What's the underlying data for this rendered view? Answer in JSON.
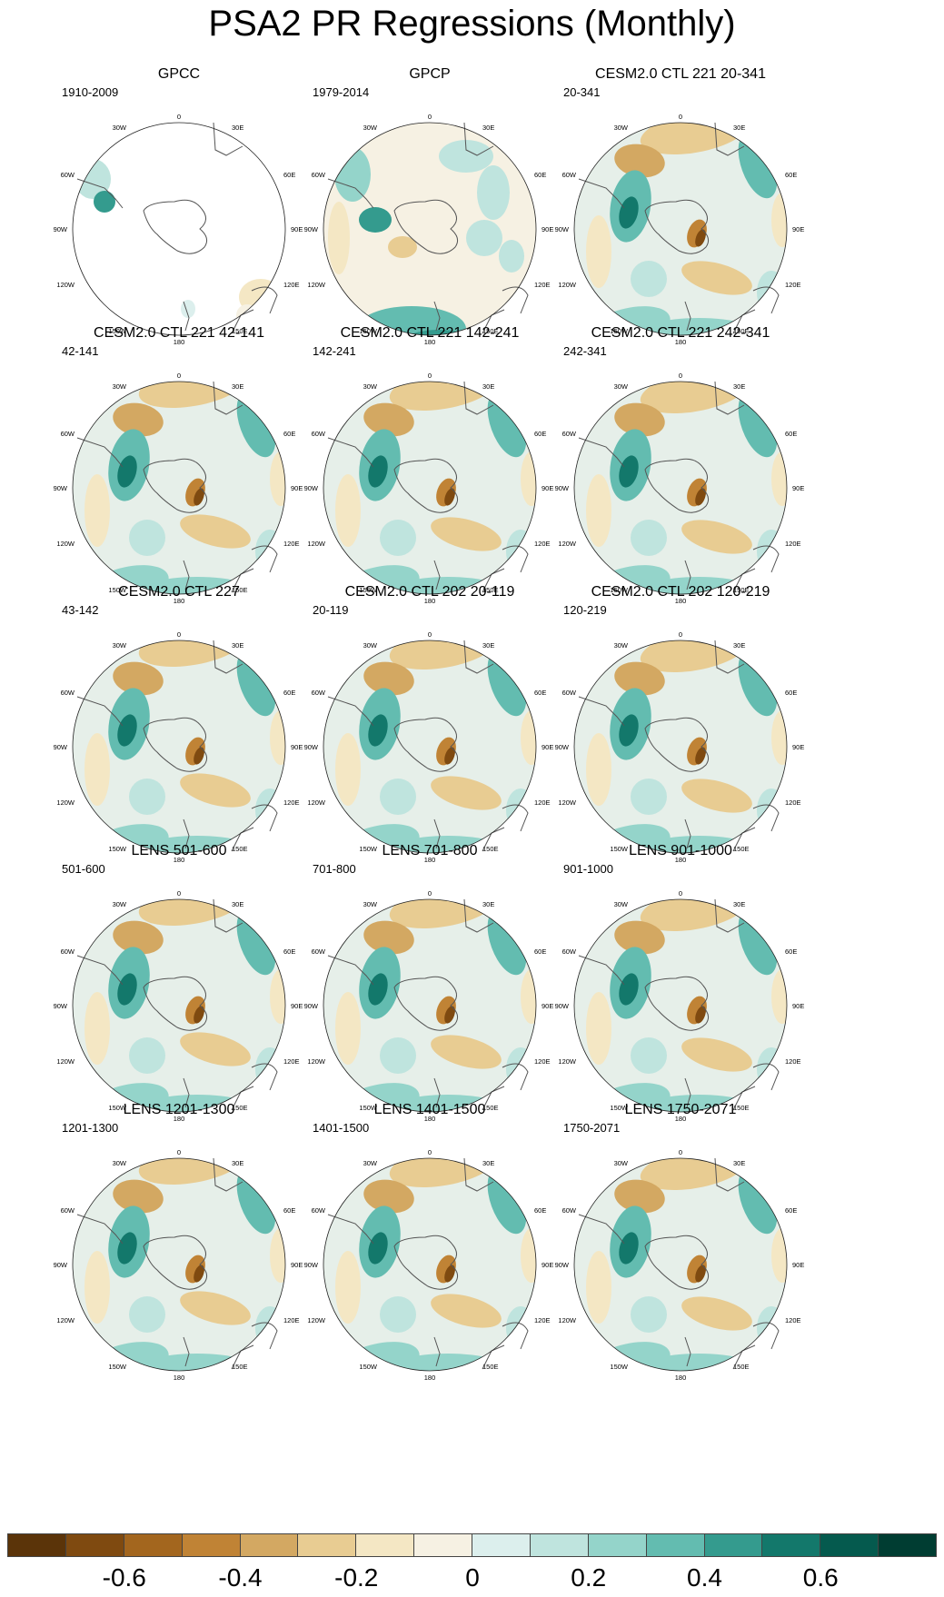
{
  "title": "PSA2 PR Regressions (Monthly)",
  "colors": {
    "levels": [
      "#5b3409",
      "#7f4a10",
      "#a3661e",
      "#c08335",
      "#d3a862",
      "#e8cc92",
      "#f4e7c4",
      "#f6f1e3",
      "#dcefed",
      "#bfe4de",
      "#94d4ca",
      "#63bcb0",
      "#349b8e",
      "#13786b",
      "#055a4e",
      "#003d32"
    ],
    "coast": "#555555"
  },
  "map_labels": {
    "top": "0",
    "bottom": "180",
    "upper_left": "30W",
    "upper_right": "30E",
    "left_upper": "60W",
    "right_upper": "60E",
    "left_mid": "90W",
    "right_mid": "90E",
    "left_lower": "120W",
    "right_lower": "120E",
    "lower_left": "150W",
    "lower_right": "150E"
  },
  "panels": [
    {
      "title": "GPCC",
      "period": "1910-2009"
    },
    {
      "title": "GPCP",
      "period": "1979-2014"
    },
    {
      "title": "CESM2.0 CTL 221 20-341",
      "period": "20-341"
    },
    {
      "title": "CESM2.0 CTL 221 42-141",
      "period": "42-141"
    },
    {
      "title": "CESM2.0 CTL 221 142-241",
      "period": "142-241"
    },
    {
      "title": "CESM2.0 CTL 221 242-341",
      "period": "242-341"
    },
    {
      "title": "CESM2.0 CTL 227",
      "period": "43-142"
    },
    {
      "title": "CESM2.0 CTL 202 20-119",
      "period": "20-119"
    },
    {
      "title": "CESM2.0 CTL 202 120-219",
      "period": "120-219"
    },
    {
      "title": "LENS 501-600",
      "period": "501-600"
    },
    {
      "title": "LENS 701-800",
      "period": "701-800"
    },
    {
      "title": "LENS 901-1000",
      "period": "901-1000"
    },
    {
      "title": "LENS 1201-1300",
      "period": "1201-1300"
    },
    {
      "title": "LENS 1401-1500",
      "period": "1401-1500"
    },
    {
      "title": "LENS 1750-2071",
      "period": "1750-2071"
    }
  ],
  "colorbar": {
    "ticks": [
      "-0.6",
      "-0.4",
      "-0.2",
      "0",
      "0.2",
      "0.4",
      "0.6"
    ]
  }
}
